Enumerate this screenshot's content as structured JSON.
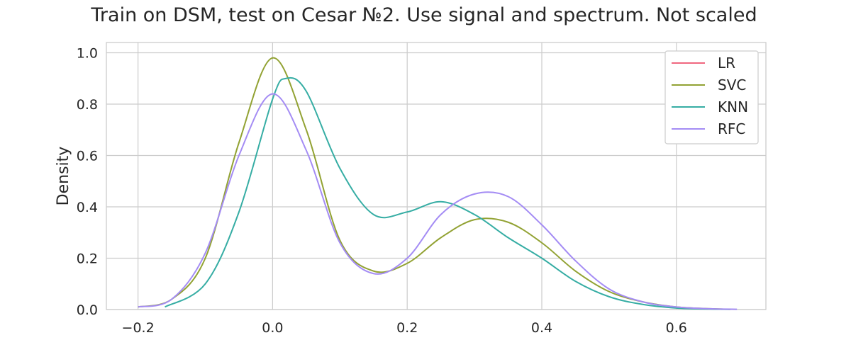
{
  "chart_data": {
    "type": "line",
    "title": "Train on DSM, test on Cesar №2. Use signal and spectrum. Not scaled",
    "xlabel": "",
    "ylabel": "Density",
    "xlim": [
      -0.247,
      0.733
    ],
    "ylim": [
      0,
      1.04
    ],
    "xticks": [
      -0.2,
      0.0,
      0.2,
      0.4,
      0.6
    ],
    "xtick_labels": [
      "−0.2",
      "0.0",
      "0.2",
      "0.4",
      "0.6"
    ],
    "yticks": [
      0.0,
      0.2,
      0.4,
      0.6,
      0.8,
      1.0
    ],
    "ytick_labels": [
      "0.0",
      "0.2",
      "0.4",
      "0.6",
      "0.8",
      "1.0"
    ],
    "grid": true,
    "legend_position": "top-right",
    "series": [
      {
        "name": "LR",
        "color": "#f0677f",
        "x": [],
        "y": []
      },
      {
        "name": "SVC",
        "color": "#92a233",
        "x": [
          -0.2,
          -0.15,
          -0.1,
          -0.05,
          0.0,
          0.05,
          0.1,
          0.15,
          0.2,
          0.25,
          0.3,
          0.35,
          0.4,
          0.45,
          0.5,
          0.55,
          0.6,
          0.65,
          0.68
        ],
        "y": [
          0.01,
          0.04,
          0.2,
          0.65,
          0.98,
          0.7,
          0.27,
          0.15,
          0.18,
          0.28,
          0.35,
          0.34,
          0.26,
          0.15,
          0.07,
          0.03,
          0.01,
          0.003,
          0.001
        ]
      },
      {
        "name": "KNN",
        "color": "#36ada4",
        "x": [
          -0.16,
          -0.1,
          -0.05,
          0.0,
          0.02,
          0.05,
          0.1,
          0.15,
          0.2,
          0.25,
          0.3,
          0.35,
          0.4,
          0.45,
          0.5,
          0.55,
          0.6,
          0.65,
          0.68
        ],
        "y": [
          0.01,
          0.1,
          0.38,
          0.82,
          0.9,
          0.85,
          0.55,
          0.37,
          0.38,
          0.42,
          0.37,
          0.28,
          0.2,
          0.11,
          0.05,
          0.02,
          0.006,
          0.002,
          0.001
        ]
      },
      {
        "name": "RFC",
        "color": "#a48cf4",
        "x": [
          -0.2,
          -0.15,
          -0.1,
          -0.05,
          0.0,
          0.05,
          0.1,
          0.15,
          0.2,
          0.25,
          0.3,
          0.35,
          0.4,
          0.45,
          0.5,
          0.55,
          0.6,
          0.65,
          0.69
        ],
        "y": [
          0.01,
          0.04,
          0.22,
          0.6,
          0.84,
          0.62,
          0.26,
          0.14,
          0.2,
          0.37,
          0.45,
          0.44,
          0.33,
          0.19,
          0.08,
          0.03,
          0.01,
          0.003,
          0.001
        ]
      }
    ]
  }
}
